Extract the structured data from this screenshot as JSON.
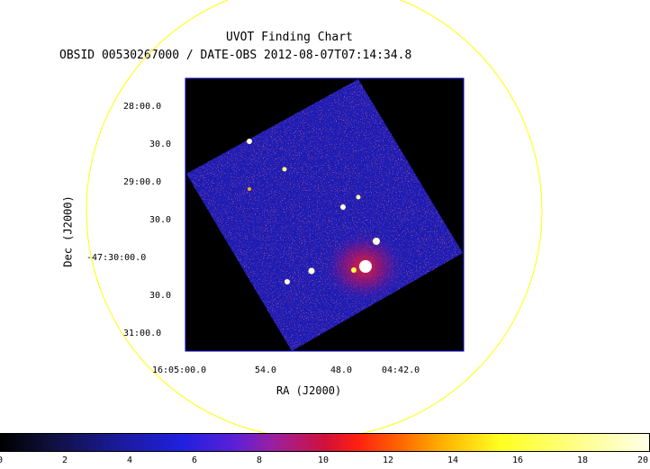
{
  "header": {
    "title": "UVOT Finding Chart",
    "subtitle": "OBSID 00530267000 / DATE-OBS 2012-08-07T07:14:34.8"
  },
  "axes": {
    "xlabel": "RA (J2000)",
    "ylabel": "Dec (J2000)",
    "dec_ticks": [
      "28:00.0",
      "30.0",
      "29:00.0",
      "30.0",
      "-47:30:00.0",
      "30.0",
      "31:00.0"
    ],
    "ra_ticks": [
      "16:05:00.0",
      "54.0",
      "48.0",
      "04:42.0"
    ]
  },
  "colorbar": {
    "ticks": [
      "0",
      "2",
      "4",
      "6",
      "8",
      "10",
      "12",
      "14",
      "16",
      "18",
      "20"
    ]
  },
  "colors": {
    "circle": "#ffff00",
    "frame": "#0000cc",
    "background": "#000000",
    "field": "#1c1cb4"
  }
}
